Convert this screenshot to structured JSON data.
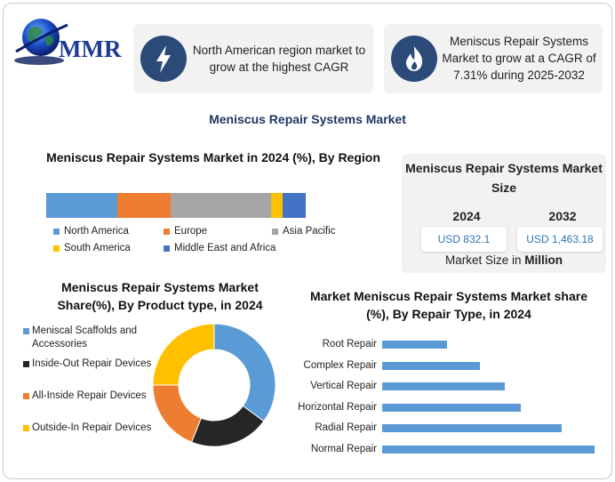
{
  "logo": {
    "text": "MMR"
  },
  "card1": {
    "icon": "lightning-icon",
    "text": "North American region market to grow at the highest CAGR"
  },
  "card2": {
    "icon": "flame-icon",
    "text": "Meniscus Repair Systems Market to grow at a CAGR of 7.31% during 2025-2032"
  },
  "main_title": "Meniscus Repair Systems Market",
  "market_size": {
    "title": "Meniscus Repair Systems Market Size",
    "year1": "2024",
    "value1": "USD 832.1",
    "year2": "2032",
    "value2": "USD 1,463.18",
    "footer_prefix": "Market Size in ",
    "footer_unit": "Million"
  },
  "chart_data": [
    {
      "type": "bar",
      "orientation": "horizontal-stacked",
      "title": "Meniscus Repair Systems Market in 2024 (%), By Region",
      "categories": [
        "North America",
        "Europe",
        "Asia Pacific",
        "South America",
        "Middle East and Africa"
      ],
      "values": [
        27.5,
        20.5,
        38.5,
        4.5,
        9.0
      ],
      "colors": [
        "#5b9bd5",
        "#ed7d31",
        "#a5a5a5",
        "#ffc000",
        "#4472c4"
      ],
      "legend": "bottom"
    },
    {
      "type": "pie",
      "variant": "donut",
      "title": "Meniscus Repair Systems Market Share(%), By Product type, in 2024",
      "categories": [
        "Meniscal Scaffolds and Accessories",
        "Inside-Out Repair Devices",
        "All-Inside Repair Devices",
        "Outside-In Repair Devices"
      ],
      "values": [
        35,
        21,
        19,
        25
      ],
      "colors": [
        "#5b9bd5",
        "#262626",
        "#ed7d31",
        "#ffc000"
      ],
      "legend": "left"
    },
    {
      "type": "bar",
      "orientation": "horizontal",
      "title": "Market Meniscus Repair Systems Market share (%), By Repair Type, in 2024",
      "categories": [
        "Root Repair",
        "Complex Repair",
        "Vertical Repair",
        "Horizontal Repair",
        "Radial Repair",
        "Normal Repair"
      ],
      "values": [
        8,
        12,
        15,
        17,
        22,
        26
      ],
      "xlim": [
        0,
        27
      ],
      "color": "#5b9bd5",
      "grid": false
    }
  ]
}
